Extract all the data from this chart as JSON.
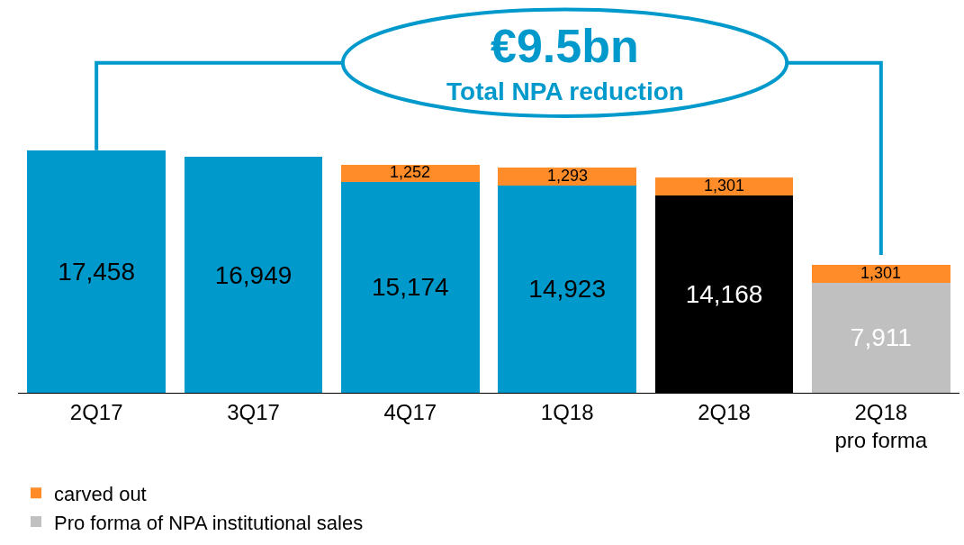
{
  "chart_data": {
    "type": "bar",
    "stacked": true,
    "legend": "bottom left",
    "categories": [
      "2Q17",
      "3Q17",
      "4Q17",
      "1Q18",
      "2Q18",
      "2Q18\npro forma"
    ],
    "series": [
      {
        "colors": [
          "#0099cc",
          "#0099cc",
          "#0099cc",
          "#0099cc",
          "#000000",
          "#c0c0c0"
        ],
        "values": [
          17458,
          16949,
          15174,
          14923,
          14168,
          null
        ],
        "value_labels": [
          "17,458",
          "16,949",
          "15,174",
          "14,923",
          "14,168",
          null
        ]
      },
      {
        "name": "Pro forma of NPA institutional sales",
        "color": "#c0c0c0",
        "values": [
          null,
          null,
          null,
          null,
          null,
          7911
        ],
        "value_labels": [
          null,
          null,
          null,
          null,
          null,
          "7,911"
        ]
      },
      {
        "name": "carved out",
        "color": "#ff8c28",
        "values": [
          null,
          null,
          1252,
          1293,
          1301,
          1301
        ],
        "value_labels": [
          null,
          null,
          "1,252",
          "1,293",
          "1,301",
          "1,301"
        ]
      }
    ],
    "annotations": [
      "€9.5bn",
      "Total NPA reduction"
    ]
  }
}
